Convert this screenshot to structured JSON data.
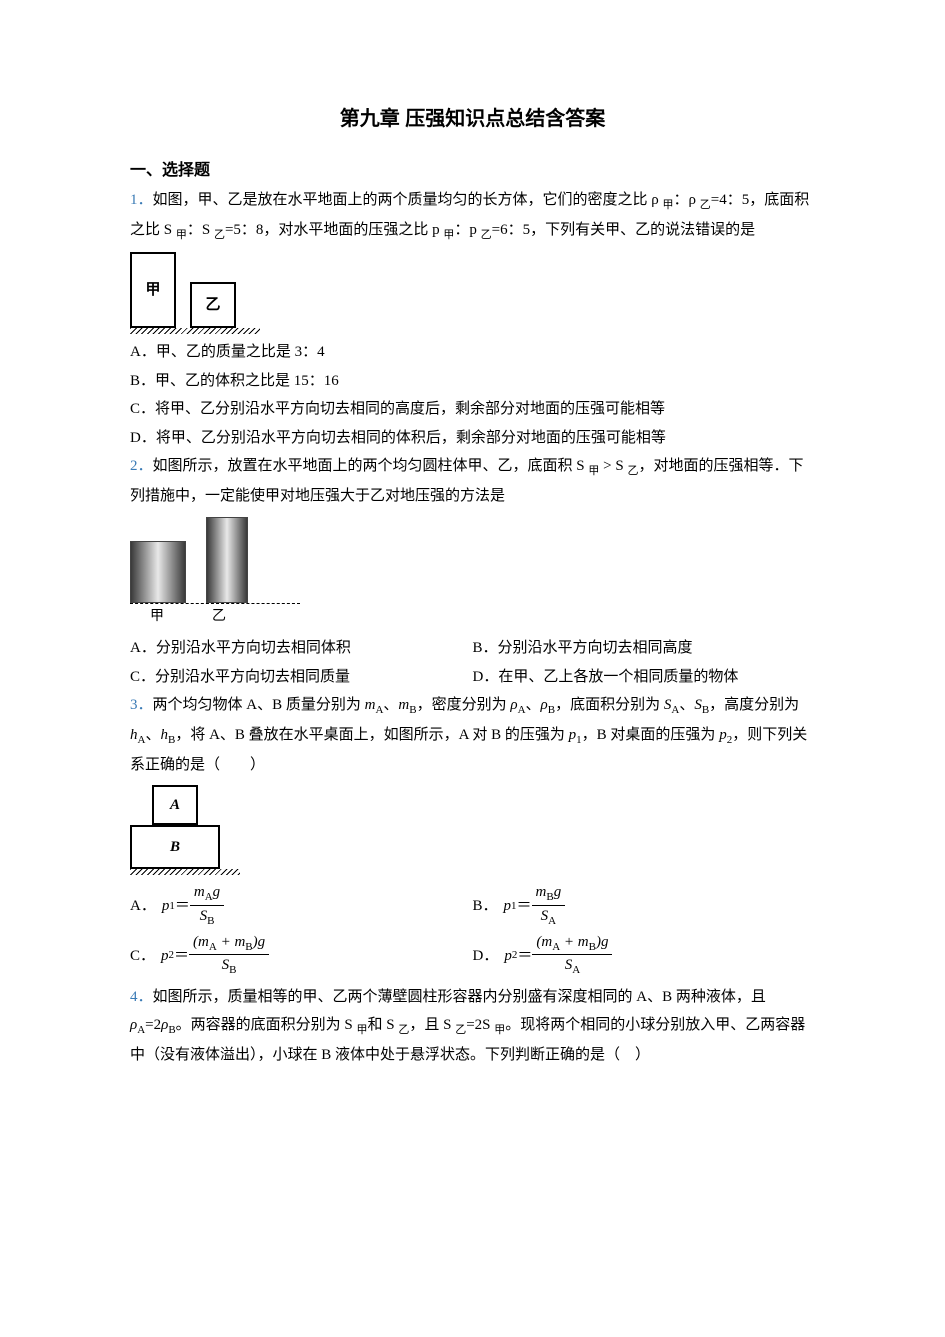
{
  "colors": {
    "link": "#3a7ab5",
    "text": "#000000",
    "bg": "#ffffff"
  },
  "title": "第九章 压强知识点总结含答案",
  "section1": "一、选择题",
  "q1": {
    "num": "1．",
    "stem_a": "如图，甲、乙是放在水平地面上的两个质量均匀的长方体，它们的密度之比 ρ ",
    "stem_b": "：ρ ",
    "stem_c": "=4：5，底面积之比 S ",
    "stem_d": "：S ",
    "stem_e": "=5：8，对水平地面的压强之比 p ",
    "stem_f": "：p ",
    "stem_g": "=6：5，下列有关甲、乙的说法错误的是",
    "sub_jia": "甲",
    "sub_yi": "乙",
    "fig_jia": "甲",
    "fig_yi": "乙",
    "A": "A．甲、乙的质量之比是 3：4",
    "B": "B．甲、乙的体积之比是 15：16",
    "C": "C．将甲、乙分别沿水平方向切去相同的高度后，剩余部分对地面的压强可能相等",
    "D": "D．将甲、乙分别沿水平方向切去相同的体积后，剩余部分对地面的压强可能相等"
  },
  "q2": {
    "num": "2．",
    "stem_a": "如图所示，放置在水平地面上的两个均匀圆柱体甲、乙，底面积 S ",
    "stem_b": " > S ",
    "stem_c": "，对地面的压强相等．下列措施中，一定能使甲对地压强大于乙对地压强的方法是",
    "fig_jia": "甲",
    "fig_yi": "乙",
    "A": "A．分别沿水平方向切去相同体积",
    "B": "B．分别沿水平方向切去相同高度",
    "C": "C．分别沿水平方向切去相同质量",
    "D": "D．在甲、乙上各放一个相同质量的物体"
  },
  "q3": {
    "num": "3．",
    "stem_a": "两个均匀物体 A、B 质量分别为 ",
    "mA": "m",
    "mA_sub": "A",
    "sep": "、",
    "mB": "m",
    "mB_sub": "B",
    "stem_b": "，密度分别为 ",
    "rhoA": "ρ",
    "rhoA_sub": "A",
    "rhoB": "ρ",
    "rhoB_sub": "B",
    "stem_c": "，底面积分别为 ",
    "SA": "S",
    "SA_sub": "A",
    "SB": "S",
    "SB_sub": "B",
    "stem_d": "，高度分别为 ",
    "hA": "h",
    "hA_sub": "A",
    "hB": "h",
    "hB_sub": "B",
    "stem_e": "，将 A、B 叠放在水平桌面上，如图所示，A 对 B 的压强为 ",
    "p1": "p",
    "p1_sub": "1",
    "stem_f": "，B 对桌面的压强为 ",
    "p2": "p",
    "p2_sub": "2",
    "stem_g": "，则下列关系正确的是（　　）",
    "fig_A": "A",
    "fig_B": "B",
    "optA_label": "A．",
    "optB_label": "B．",
    "optC_label": "C．",
    "optD_label": "D．",
    "eq_p1": "p",
    "eq_p1_sub": "1",
    "eq_p2": "p",
    "eq_p2_sub": "2",
    "eq_eq": "＝",
    "g": "g",
    "num_mA": "m",
    "num_mA_sub": "A",
    "num_mB": "m",
    "num_mB_sub": "B",
    "num_sum_open": "(",
    "num_sum_plus": " + ",
    "num_sum_close": ")",
    "den_S": "S",
    "den_SA_sub": "A",
    "den_SB_sub": "B"
  },
  "q4": {
    "num": "4．",
    "stem_a": "如图所示，质量相等的甲、乙两个薄壁圆柱形容器内分别盛有深度相同的 A、B 两种液体，且 ",
    "rhoA": "ρ",
    "rhoA_sub": "A",
    "eq2": "=2",
    "rhoB": "ρ",
    "rhoB_sub": "B",
    "stem_b": "。两容器的底面积分别为 S ",
    "sub_jia": "甲",
    "and": "和 S ",
    "sub_yi": "乙",
    "stem_c": "，且 S ",
    "eq2s": "=2S ",
    "stem_d": "。现将两个相同的小球分别放入甲、乙两容器中（没有液体溢出），小球在 B 液体中处于悬浮状态。下列判断正确的是（　）"
  }
}
